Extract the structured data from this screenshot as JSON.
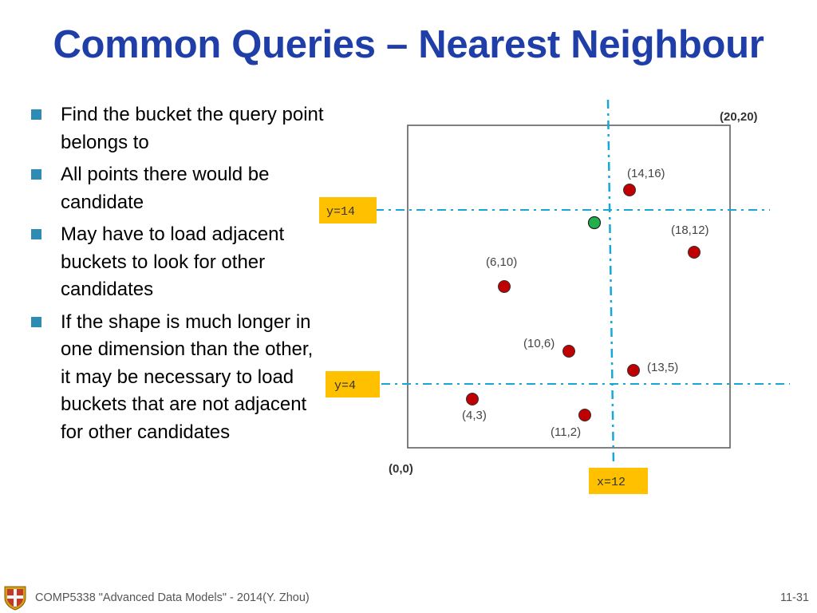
{
  "slide": {
    "title": "Common Queries – Nearest Neighbour",
    "bullets": [
      "Find the bucket the query point belongs to",
      "All points there would be candidate",
      "May have to load adjacent buckets to look for other candidates",
      "If the shape is much longer in one dimension than the other, it may be necessary to load buckets that are not adjacent for other candidates"
    ]
  },
  "diagram": {
    "corner_top_right": "(20,20)",
    "corner_bottom_left": "(0,0)",
    "split_labels": {
      "y14": "y=14",
      "y4": "y=4",
      "x12": "x=12"
    },
    "points": [
      {
        "label": "(14,16)",
        "x": 14,
        "y": 16
      },
      {
        "label": "(18,12)",
        "x": 18,
        "y": 12
      },
      {
        "label": "(6,10)",
        "x": 6,
        "y": 10
      },
      {
        "label": "(10,6)",
        "x": 10,
        "y": 6
      },
      {
        "label": "(13,5)",
        "x": 13,
        "y": 5
      },
      {
        "label": "(4,3)",
        "x": 4,
        "y": 3
      },
      {
        "label": "(11,2)",
        "x": 11,
        "y": 2
      }
    ],
    "query_point_color": "#22b04b",
    "data_point_color": "#c00000",
    "split_line_color": "#17a7d8",
    "label_box_color": "#ffc000"
  },
  "footer": {
    "course": "COMP5338 \"Advanced Data Models\" - 2014(Y. Zhou)",
    "page": "11-31"
  }
}
